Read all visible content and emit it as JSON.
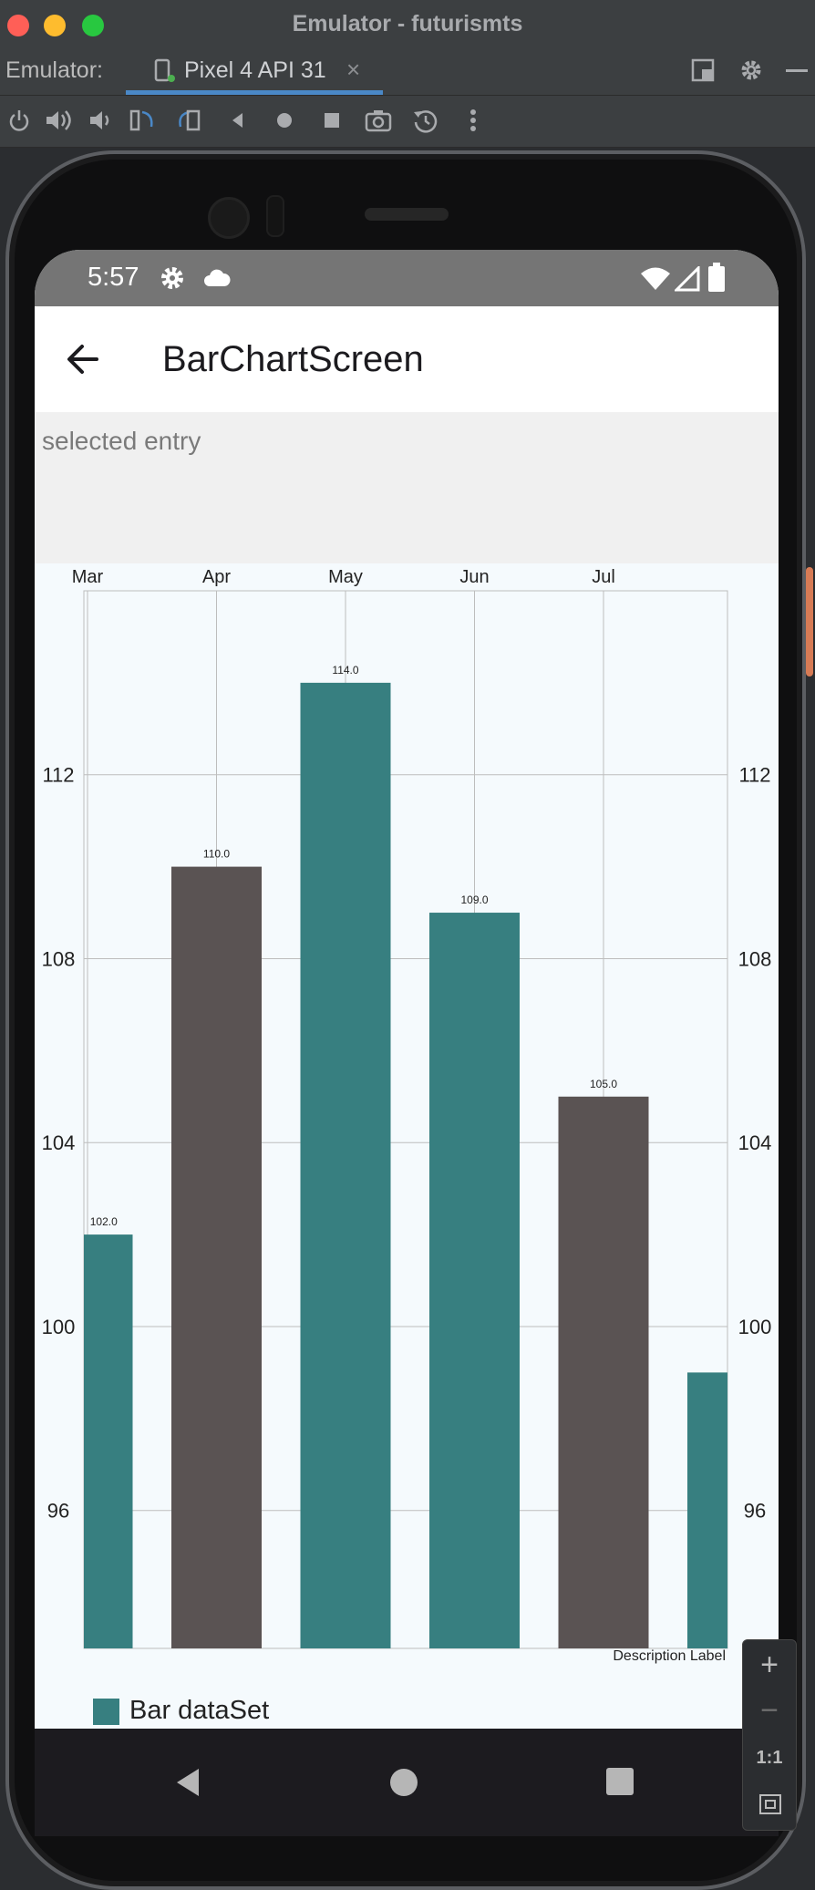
{
  "window": {
    "title": "Emulator - futurismts"
  },
  "tabbar": {
    "label": "Emulator:",
    "tab_name": "Pixel 4 API 31",
    "tab_close": "×"
  },
  "toolbar": {
    "icons": [
      "power-icon",
      "volume-up-icon",
      "volume-down-icon",
      "rotate-left-icon",
      "rotate-right-icon",
      "back-icon",
      "home-icon",
      "overview-icon",
      "camera-icon",
      "snapshot-icon",
      "more-icon"
    ]
  },
  "status": {
    "time": "5:57"
  },
  "appbar": {
    "title": "BarChartScreen"
  },
  "selection": {
    "text": "selected entry"
  },
  "zoom": {
    "plus": "+",
    "minus": "−",
    "one_to_one": "1:1"
  },
  "colors": {
    "teal": "#377f80",
    "dark": "#5a5353",
    "chart_bg": "#f5fafd"
  },
  "chart_data": {
    "type": "bar",
    "categories": [
      "Mar",
      "Apr",
      "May",
      "Jun",
      "Jul",
      ""
    ],
    "series": [
      {
        "name": "Bar dataSet",
        "values": [
          102.0,
          110.0,
          114.0,
          109.0,
          105.0,
          99.0
        ]
      }
    ],
    "value_labels": [
      "102.0",
      "110.0",
      "114.0",
      "109.0",
      "105.0",
      ""
    ],
    "bar_colors": [
      "#377f80",
      "#5a5353",
      "#377f80",
      "#377f80",
      "#5a5353",
      "#377f80"
    ],
    "y_ticks": [
      "96",
      "100",
      "104",
      "108",
      "112"
    ],
    "ylim": [
      93,
      116
    ],
    "description": "Description Label",
    "legend": {
      "label": "Bar dataSet",
      "position": "bottom-left"
    },
    "grid": true
  }
}
